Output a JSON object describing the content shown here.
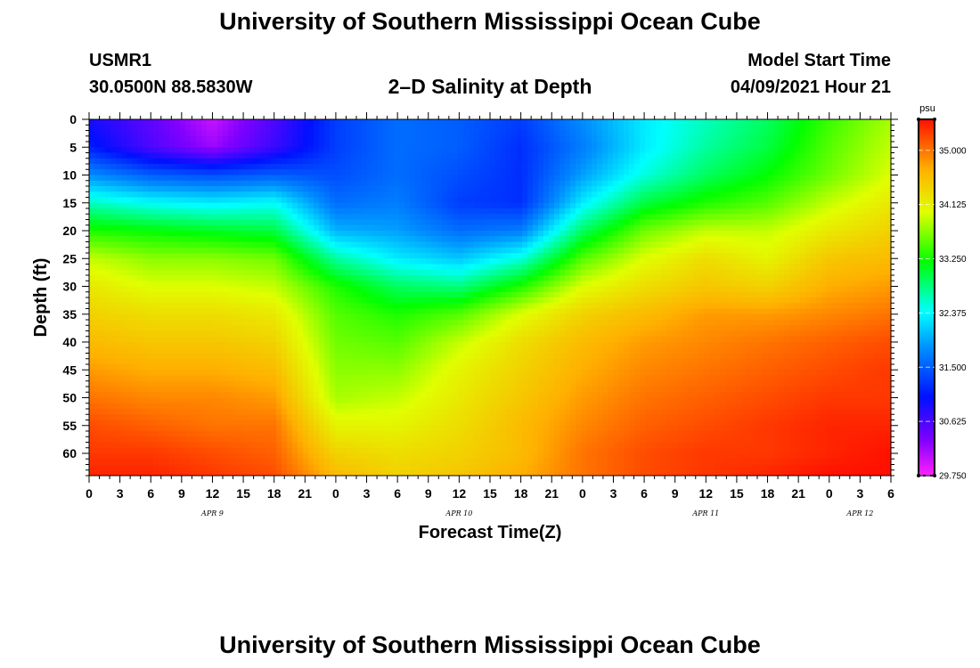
{
  "header": {
    "title": "University of Southern Mississippi Ocean Cube",
    "station_id": "USMR1",
    "location": "30.0500N  88.5830W",
    "plot_title": "2–D Salinity at Depth",
    "model_start_label": "Model Start Time",
    "model_start_value": "04/09/2021 Hour 21"
  },
  "footer": {
    "title": "University of Southern Mississippi Ocean Cube"
  },
  "chart_data": {
    "type": "heatmap",
    "title": "2–D Salinity at Depth",
    "xlabel": "Forecast Time(Z)",
    "ylabel": "Depth (ft)",
    "x_range_hours": [
      0,
      78
    ],
    "ylim": [
      0,
      64
    ],
    "y_ticks": [
      0,
      5,
      10,
      15,
      20,
      25,
      30,
      35,
      40,
      45,
      50,
      55,
      60
    ],
    "x_tick_labels": [
      "0",
      "3",
      "6",
      "9",
      "12",
      "15",
      "18",
      "21",
      "0",
      "3",
      "6",
      "9",
      "12",
      "15",
      "18",
      "21",
      "0",
      "3",
      "6",
      "9",
      "12",
      "15",
      "18",
      "21",
      "0",
      "3",
      "6"
    ],
    "date_labels": [
      {
        "label": "APR 9",
        "hour": 12
      },
      {
        "label": "APR 10",
        "hour": 36
      },
      {
        "label": "APR 11",
        "hour": 60
      },
      {
        "label": "APR 12",
        "hour": 75
      }
    ],
    "colorbar": {
      "unit": "psu",
      "min": 29.75,
      "max": 35.5,
      "tick_labels": [
        "35.000",
        "34.125",
        "33.250",
        "32.375",
        "31.500",
        "30.625",
        "29.750"
      ],
      "tick_values": [
        35.0,
        34.125,
        33.25,
        32.375,
        31.5,
        30.625,
        29.75
      ]
    },
    "hours": [
      0,
      6,
      12,
      18,
      24,
      30,
      36,
      42,
      48,
      54,
      60,
      66,
      72,
      78
    ],
    "depths": [
      0,
      5,
      10,
      15,
      20,
      25,
      30,
      35,
      40,
      45,
      50,
      55,
      60,
      64
    ],
    "salinity": [
      [
        30.9,
        30.5,
        30.0,
        30.6,
        31.3,
        31.6,
        31.5,
        31.3,
        31.8,
        32.3,
        32.6,
        32.9,
        33.4,
        33.8
      ],
      [
        31.1,
        30.6,
        30.2,
        30.7,
        31.3,
        31.6,
        31.5,
        31.2,
        31.7,
        32.3,
        32.7,
        33.0,
        33.5,
        33.9
      ],
      [
        31.8,
        31.5,
        31.4,
        31.5,
        31.4,
        31.6,
        31.4,
        31.2,
        31.9,
        32.5,
        32.9,
        33.2,
        33.6,
        34.0
      ],
      [
        32.6,
        32.4,
        32.3,
        32.4,
        31.6,
        31.7,
        31.3,
        31.2,
        32.3,
        33.0,
        33.3,
        33.5,
        33.9,
        34.2
      ],
      [
        33.3,
        33.2,
        33.1,
        33.0,
        32.0,
        31.9,
        31.6,
        31.7,
        32.9,
        33.6,
        33.9,
        33.9,
        34.2,
        34.4
      ],
      [
        33.9,
        33.7,
        33.7,
        33.6,
        32.7,
        32.3,
        32.1,
        32.5,
        33.5,
        34.0,
        34.3,
        34.1,
        34.5,
        34.6
      ],
      [
        34.2,
        34.0,
        34.0,
        33.9,
        33.3,
        32.9,
        32.8,
        33.3,
        34.0,
        34.3,
        34.5,
        34.4,
        34.7,
        34.8
      ],
      [
        34.4,
        34.3,
        34.3,
        34.2,
        33.5,
        33.3,
        33.5,
        34.0,
        34.4,
        34.6,
        34.8,
        34.8,
        34.9,
        35.0
      ],
      [
        34.6,
        34.5,
        34.5,
        34.4,
        33.6,
        33.5,
        33.9,
        34.3,
        34.6,
        34.8,
        34.9,
        35.0,
        35.1,
        35.2
      ],
      [
        34.8,
        34.7,
        34.7,
        34.6,
        33.7,
        33.7,
        34.1,
        34.4,
        34.7,
        34.9,
        35.0,
        35.1,
        35.2,
        35.3
      ],
      [
        35.0,
        34.9,
        34.9,
        34.8,
        33.8,
        33.9,
        34.2,
        34.5,
        34.8,
        35.0,
        35.1,
        35.2,
        35.3,
        35.3
      ],
      [
        35.2,
        35.1,
        35.0,
        35.0,
        34.1,
        34.1,
        34.3,
        34.6,
        34.9,
        35.1,
        35.2,
        35.3,
        35.4,
        35.4
      ],
      [
        35.3,
        35.3,
        35.2,
        35.1,
        34.4,
        34.3,
        34.4,
        34.6,
        35.0,
        35.2,
        35.3,
        35.3,
        35.4,
        35.5
      ],
      [
        35.4,
        35.4,
        35.3,
        35.2,
        34.6,
        34.4,
        34.5,
        34.7,
        35.0,
        35.2,
        35.3,
        35.4,
        35.5,
        35.5
      ]
    ]
  }
}
